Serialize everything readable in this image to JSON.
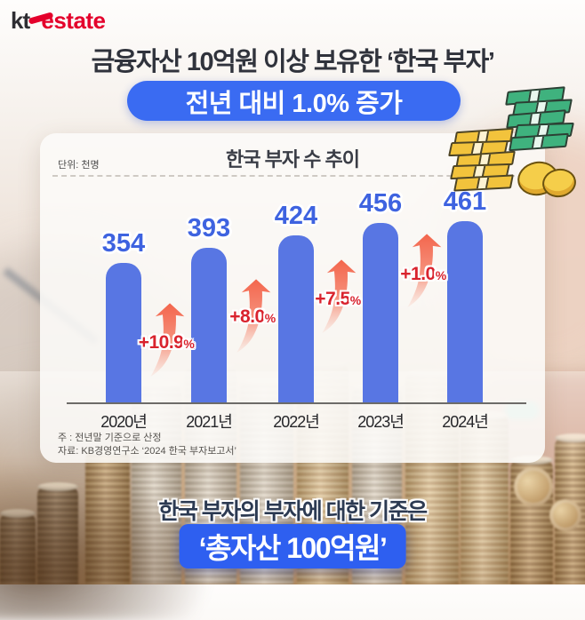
{
  "logo": {
    "kt": "kt",
    "estate": "estate"
  },
  "header": {
    "title": "금융자산 10억원 이상 보유한 ‘한국 부자’",
    "badge": "전년 대비 1.0% 증가"
  },
  "chart_card": {
    "unit_label": "단위: 천명",
    "title": "한국 부자 수 추이",
    "notes": [
      "주 : 전년말 기준으로 산정",
      "자료: KB경영연구소 ‘2024 한국 부자보고서’"
    ]
  },
  "chart_data": {
    "type": "bar",
    "title": "한국 부자 수 추이",
    "unit": "천명",
    "categories": [
      "2020년",
      "2021년",
      "2022년",
      "2023년",
      "2024년"
    ],
    "values": [
      354,
      393,
      424,
      456,
      461
    ],
    "growth": [
      {
        "delta": "+10.9",
        "unit": "%"
      },
      {
        "delta": "+8.0",
        "unit": "%"
      },
      {
        "delta": "+7.5",
        "unit": "%"
      },
      {
        "delta": "+1.0",
        "unit": "%"
      }
    ],
    "ylim": [
      0,
      461
    ],
    "grid": false,
    "legend": "none",
    "bar_color": "#5876E3",
    "value_label_color": "#3E63E0",
    "growth_label_color": "#D9232E",
    "arrow_color": "#F3705A"
  },
  "footer": {
    "line": "한국 부자의 부자에 대한 기준은",
    "highlight": "‘총자산 100억원’"
  },
  "colors": {
    "badge_blue": "#3A6BF2",
    "highlight_blue": "#2E5FF0",
    "title_dark": "#30333C",
    "logo_red": "#E4002B"
  }
}
